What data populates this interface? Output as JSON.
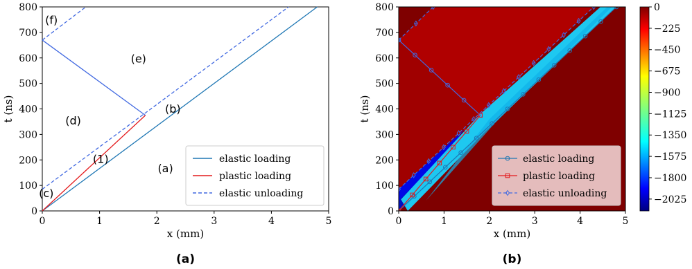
{
  "colors": {
    "elastic": "#1f77b4",
    "plastic": "#e41a1c",
    "unloading": "#4169e1",
    "heat_low": "#00007f",
    "heat_high": "#7f0000",
    "cyan_band": "#1ec8f0",
    "upper_region": "#b00000"
  },
  "chart_data": [
    {
      "type": "line",
      "caption": "(a)",
      "xlabel": "x (mm)",
      "ylabel": "t (ns)",
      "xlim": [
        0,
        5
      ],
      "ylim": [
        0,
        800
      ],
      "xticks": [
        0,
        1,
        2,
        3,
        4,
        5
      ],
      "yticks": [
        0,
        100,
        200,
        300,
        400,
        500,
        600,
        700,
        800
      ],
      "legend": {
        "placement": "lower-right",
        "entries": [
          "elastic loading",
          "plastic loading",
          "elastic unloading"
        ]
      },
      "series": [
        {
          "name": "elastic loading",
          "segments": [
            [
              [
                0,
                0
              ],
              [
                4.8,
                800
              ]
            ],
            [
              [
                1.8,
                375
              ],
              [
                0,
                670
              ]
            ]
          ]
        },
        {
          "name": "plastic loading",
          "segments": [
            [
              [
                0,
                0
              ],
              [
                1.8,
                375
              ]
            ]
          ]
        },
        {
          "name": "elastic unloading",
          "segments": [
            [
              [
                0,
                85
              ],
              [
                4.3,
                800
              ]
            ],
            [
              [
                0,
                670
              ],
              [
                0.76,
                800
              ]
            ]
          ]
        }
      ],
      "annotations": [
        {
          "text": "(a)",
          "x": 2.15,
          "y": 165
        },
        {
          "text": "(b)",
          "x": 2.28,
          "y": 398
        },
        {
          "text": "(c)",
          "x": 0.07,
          "y": 68
        },
        {
          "text": "(d)",
          "x": 0.54,
          "y": 352
        },
        {
          "text": "(e)",
          "x": 1.68,
          "y": 595
        },
        {
          "text": "(f)",
          "x": 0.16,
          "y": 747
        },
        {
          "text": "(1)",
          "x": 1.02,
          "y": 202
        }
      ]
    },
    {
      "type": "heatmap",
      "caption": "(b)",
      "xlabel": "x (mm)",
      "ylabel": "t (ns)",
      "xlim": [
        0,
        5
      ],
      "ylim": [
        0,
        800
      ],
      "xticks": [
        0,
        1,
        2,
        3,
        4,
        5
      ],
      "yticks": [
        0,
        100,
        200,
        300,
        400,
        500,
        600,
        700,
        800
      ],
      "colorbar": {
        "ticks": [
          0,
          -225,
          -450,
          -675,
          -900,
          -1125,
          -1350,
          -1575,
          -1800,
          -2025
        ],
        "vmin": -2150,
        "vmax": 0
      },
      "legend": {
        "placement": "lower-right",
        "entries": [
          "elastic loading",
          "plastic loading",
          "elastic unloading"
        ]
      },
      "markers": {
        "elastic loading": "circle",
        "plastic loading": "square",
        "elastic unloading": "diamond"
      }
    }
  ]
}
